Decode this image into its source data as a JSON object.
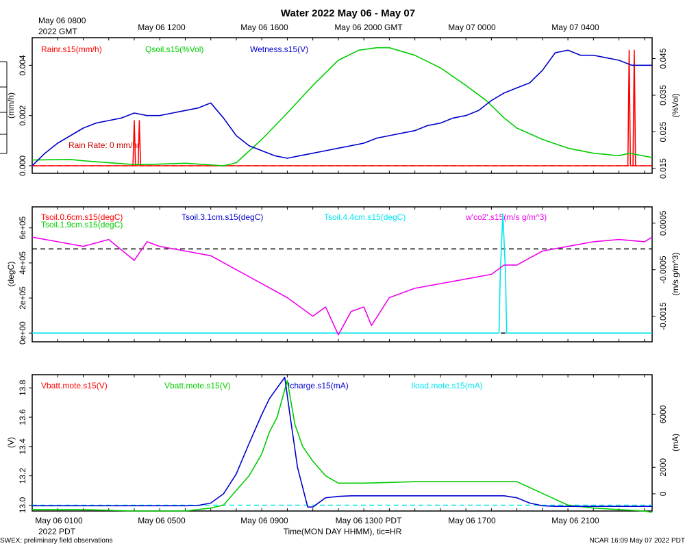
{
  "figure": {
    "title": "Water 2022 May 06 - May 07",
    "top_axis_origin": [
      "May 06 0800",
      "2022 GMT"
    ],
    "top_ticks": [
      "May 06 1200",
      "May 06 1600",
      "May 06 2000 GMT",
      "May 07 0000",
      "May 07 0400"
    ],
    "bottom_ticks": [
      "May 06 0100",
      "May 06 0500",
      "May 06 0900",
      "May 06 1300 PDT",
      "May 06 1700",
      "May 06 2100"
    ],
    "bottom_origin": "2022 PDT",
    "xlabel": "Time(MON DAY HHMM), tic=HR",
    "footer_left": "SWEX: preliminary field observations",
    "footer_right": "NCAR 16:09 May 07 2022 PDT"
  },
  "chart_data": [
    {
      "type": "line",
      "panel": "top",
      "x_unit": "hours since May 06 0000 PDT",
      "xlim": [
        -1,
        23.3
      ],
      "left_axis": {
        "label": "(mm/h)",
        "ylim": [
          -0.0003,
          0.0051
        ],
        "ticks": [
          "0.000",
          "0.002",
          "0.004"
        ],
        "tick_values": [
          0,
          0.002,
          0.004
        ]
      },
      "right_axis": {
        "label": "(%Vol)",
        "ylim": [
          0.0137,
          0.0507
        ],
        "ticks": [
          "0.015",
          "0.025",
          "0.035",
          "0.045"
        ],
        "tick_values": [
          0.015,
          0.025,
          0.035,
          0.045
        ]
      },
      "legend": [
        "Rainr.s15(mm/h)",
        "Qsoil.s15(%Vol)",
        "Wetness.s15(V)"
      ],
      "annotation": "Rain Rate: 0 mm/hr",
      "reference_lines": [
        {
          "axis": "left",
          "y": 0,
          "color": "#ff0000",
          "style": "dashed"
        }
      ],
      "series": [
        {
          "name": "Rainr.s15(mm/h)",
          "axis": "left",
          "color": "#ff0000",
          "x": [
            -1,
            2.95,
            3.0,
            3.05,
            3.15,
            3.2,
            3.25,
            22.35,
            22.4,
            22.45,
            22.55,
            22.6,
            22.65,
            23.3
          ],
          "y": [
            0,
            0,
            0.0018,
            0,
            0,
            0.0018,
            0,
            0,
            0.0046,
            0,
            0,
            0.0046,
            0,
            0
          ]
        },
        {
          "name": "Qsoil.s15(%Vol)",
          "axis": "left",
          "color": "#00cc00",
          "x": [
            -1,
            0.5,
            1,
            2,
            3,
            3.5,
            5,
            6.5,
            7,
            8,
            9,
            10,
            11,
            11.8,
            12.5,
            13,
            14,
            15,
            16,
            16.8,
            17.5,
            18,
            19,
            20,
            21,
            22,
            22.4,
            23.3
          ],
          "y": [
            0.00023,
            0.00025,
            0.0002,
            0.00012,
            5e-05,
            5e-05,
            0.0001,
            0.0,
            0.00012,
            0.00105,
            0.0021,
            0.0032,
            0.0042,
            0.0046,
            0.0047,
            0.0047,
            0.0044,
            0.0039,
            0.0032,
            0.0026,
            0.0019,
            0.0015,
            0.00105,
            0.0007,
            0.0005,
            0.0004,
            0.0005,
            0.00033
          ]
        },
        {
          "name": "Wetness.s15(V)",
          "axis": "left",
          "color": "#0000cc",
          "x": [
            -1,
            -0.5,
            0,
            0.5,
            1,
            1.5,
            2,
            2.5,
            3,
            3.5,
            4,
            4.5,
            5,
            5.5,
            6,
            6.5,
            7,
            7.5,
            8,
            8.5,
            9,
            9.5,
            10,
            10.5,
            11,
            11.5,
            12,
            12.5,
            13,
            13.5,
            14,
            14.5,
            15,
            15.5,
            16,
            16.5,
            17,
            17.5,
            18,
            18.5,
            19,
            19.5,
            20,
            20.5,
            21,
            21.5,
            22,
            22.5,
            23,
            23.3
          ],
          "y": [
            0.0,
            0.0005,
            0.0009,
            0.0012,
            0.0015,
            0.0017,
            0.0018,
            0.0019,
            0.0021,
            0.002,
            0.002,
            0.0021,
            0.0022,
            0.0023,
            0.0025,
            0.0019,
            0.0012,
            0.0008,
            0.0006,
            0.0004,
            0.0003,
            0.0004,
            0.0005,
            0.0006,
            0.0007,
            0.0008,
            0.0009,
            0.0011,
            0.0012,
            0.0013,
            0.0014,
            0.0016,
            0.0017,
            0.0019,
            0.002,
            0.0022,
            0.0026,
            0.0029,
            0.0031,
            0.0033,
            0.0038,
            0.0045,
            0.0046,
            0.0044,
            0.0044,
            0.0043,
            0.0042,
            0.004,
            0.004,
            0.004
          ]
        }
      ]
    },
    {
      "type": "line",
      "panel": "middle",
      "x_unit": "hours since May 06 0000 PDT",
      "xlim": [
        -1,
        23.3
      ],
      "left_axis": {
        "label": "(degC)",
        "ylim": [
          -50000,
          720000
        ],
        "ticks": [
          "0e+00",
          "2e+05",
          "4e+05",
          "6e+05"
        ],
        "tick_values": [
          0,
          200000,
          400000,
          600000
        ]
      },
      "right_axis": {
        "label": "(m/s g/m^3)",
        "ylim": [
          -0.00205,
          0.00085
        ],
        "ticks": [
          "-0.0015",
          "-0.0005",
          "0.0005"
        ],
        "tick_values": [
          -0.0015,
          -0.0005,
          0.0005
        ]
      },
      "legend": [
        "Tsoil.0.6cm.s15(degC)",
        "Tsoil.1.9cm.s15(degC)",
        "Tsoil.3.1cm.s15(degC)",
        "Tsoil.4.4cm.s15(degC)",
        "w'co2'.s15(m/s g/m^3)"
      ],
      "reference_lines": [
        {
          "axis": "left",
          "y": 480000,
          "color": "#000000",
          "style": "dashed"
        },
        {
          "axis": "left",
          "y": 0,
          "color": "#000000",
          "style": "dashed"
        }
      ],
      "series": [
        {
          "name": "Tsoil.4.4cm.s15(degC)",
          "axis": "left",
          "color": "#00e5ee",
          "x": [
            -1,
            17.3,
            17.35,
            17.45,
            17.55,
            17.6,
            23.3
          ],
          "y": [
            0,
            0,
            350000,
            680000,
            350000,
            0,
            0
          ]
        },
        {
          "name": "w'co2'.s15(m/s g/m^3)",
          "axis": "right",
          "color": "#ee00ee",
          "x": [
            -1,
            0,
            1,
            2,
            3,
            3.5,
            4,
            5,
            6,
            7,
            8,
            9,
            10,
            10.5,
            11,
            11.5,
            12,
            12.3,
            13,
            14,
            15,
            16,
            17,
            17.5,
            18,
            19,
            20,
            21,
            22,
            23,
            23.3
          ],
          "y": [
            0.0002,
            0.0001,
            -0.0,
            0.00015,
            -0.0003,
            0.0001,
            0.0,
            -0.0001,
            -0.0002,
            -0.0005,
            -0.0008,
            -0.0011,
            -0.0015,
            -0.0013,
            -0.0019,
            -0.0014,
            -0.0013,
            -0.0017,
            -0.0011,
            -0.0009,
            -0.0008,
            -0.0007,
            -0.0006,
            -0.0004,
            -0.0004,
            -0.0001,
            -0.0,
            0.0001,
            0.00015,
            0.0001,
            0.0002
          ]
        }
      ]
    },
    {
      "type": "line",
      "panel": "bottom",
      "x_unit": "hours since May 06 0000 PDT",
      "xlim": [
        -1,
        23.3
      ],
      "left_axis": {
        "label": "(V)",
        "ylim": [
          12.96,
          13.89
        ],
        "ticks": [
          "13.0",
          "13.2",
          "13.4",
          "13.6",
          "13.8"
        ],
        "tick_values": [
          13.0,
          13.2,
          13.4,
          13.6,
          13.8
        ]
      },
      "right_axis": {
        "label": "(mA)",
        "ylim": [
          -1300,
          9000
        ],
        "ticks": [
          "0",
          "2000",
          "6000"
        ],
        "tick_values": [
          0,
          2000,
          6000
        ]
      },
      "legend": [
        "Vbatt.mote.s15(V)",
        "Vbatt.mote.s15(V)",
        "Icharge.s15(mA)",
        "Iload.mote.s15(mA)"
      ],
      "reference_lines": [
        {
          "axis": "left",
          "y": 13.0,
          "color": "#00e5ee",
          "style": "dashed"
        }
      ],
      "series": [
        {
          "name": "Vbatt.mote.s15(V)",
          "axis": "left",
          "color": "#00cc00",
          "x": [
            -1,
            1,
            3,
            5,
            6,
            6.5,
            7,
            7.5,
            8,
            8.3,
            8.6,
            9,
            9.3,
            9.6,
            10,
            10.5,
            11,
            11.5,
            12,
            13,
            14,
            15,
            16,
            17,
            18,
            19,
            20,
            21,
            22,
            23,
            23.3
          ],
          "y": [
            12.97,
            12.97,
            12.96,
            12.96,
            12.98,
            13.0,
            13.1,
            13.2,
            13.35,
            13.5,
            13.6,
            13.85,
            13.55,
            13.4,
            13.3,
            13.2,
            13.15,
            13.15,
            13.15,
            13.155,
            13.16,
            13.16,
            13.16,
            13.16,
            13.16,
            13.08,
            13.0,
            12.98,
            12.97,
            12.96,
            12.95
          ]
        },
        {
          "name": "Icharge.s15(mA)",
          "axis": "right",
          "color": "#0000cc",
          "x": [
            -1,
            5,
            5.5,
            6,
            6.5,
            7,
            7.5,
            8,
            8.3,
            8.6,
            8.9,
            9.1,
            9.4,
            9.8,
            10,
            10.5,
            11,
            11.5,
            12,
            17,
            17.5,
            18,
            18.5,
            19,
            19.5,
            20,
            23.3
          ],
          "y": [
            -900,
            -900,
            -880,
            -700,
            0,
            1500,
            3800,
            6000,
            7200,
            8000,
            8800,
            6000,
            2000,
            -1000,
            -1000,
            -300,
            -200,
            -150,
            -150,
            -150,
            -150,
            -300,
            -700,
            -900,
            -950,
            -950,
            -950
          ]
        }
      ]
    }
  ]
}
